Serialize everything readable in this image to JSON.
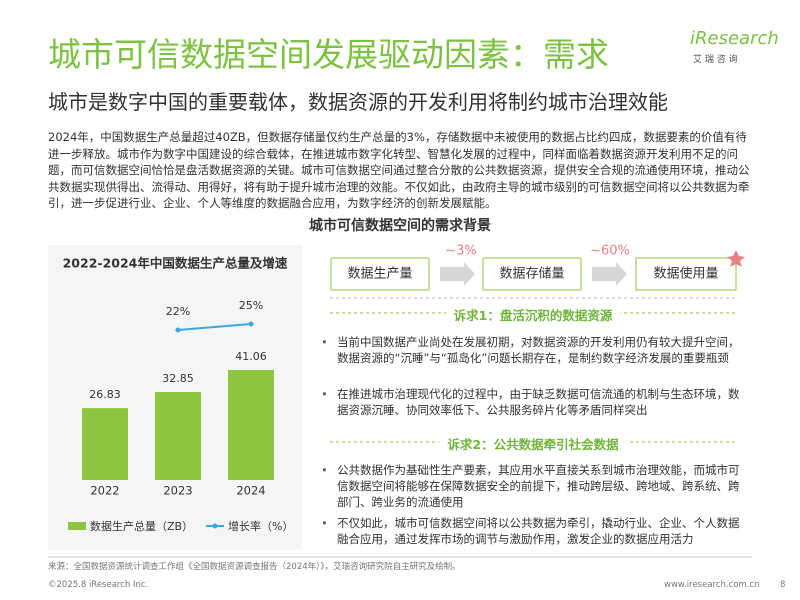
{
  "header": {
    "title": "城市可信数据空间发展驱动因素：需求",
    "subtitle": "城市是数字中国的重要载体，数据资源的开发利用将制约城市治理效能",
    "logo": "iResearch",
    "logo_sub": "艾 瑞 咨 询"
  },
  "intro": "2024年，中国数据生产总量超过40ZB，但数据存储量仅约生产总量的3%，存储数据中未被使用的数据占比约四成，数据要素的价值有待进一步释放。城市作为数字中国建设的综合载体，在推进城市数字化转型、智慧化发展的过程中，同样面临着数据资源开发利用不足的问题，而可信数据空间恰恰是盘活数据资源的关键。城市可信数据空间通过整合分散的公共数据资源，提供安全合规的流通使用环境，推动公共数据实现供得出、流得动、用得好，将有助于提升城市治理的效能。不仅如此，由政府主导的城市级别的可信数据空间将以公共数据为牵引，进一步促进行业、企业、个人等维度的数据融合应用，为数字经济的创新发展赋能。",
  "section_title": "城市可信数据空间的需求背景",
  "flow": {
    "nodes": [
      "数据生产量",
      "数据存储量",
      "数据使用量"
    ],
    "arrows": [
      "~3%",
      "~60%"
    ]
  },
  "demands": [
    {
      "title": "诉求1：盘活沉积的数据资源",
      "bullets": [
        "当前中国数据产业尚处在发展初期，对数据资源的开发利用仍有较大提升空间，数据资源的“沉睡”与“孤岛化”问题长期存在，是制约数字经济发展的重要瓶颈",
        "在推进城市治理现代化的过程中，由于缺乏数据可信流通的机制与生态环境，数据资源沉睡、协同效率低下、公共服务碎片化等矛盾同样突出"
      ]
    },
    {
      "title": "诉求2：公共数据牵引社会数据",
      "bullets": [
        "公共数据作为基础性生产要素，其应用水平直接关系到城市治理效能，而城市可信数据空间将能够在保障数据安全的前提下，推动跨层级、跨地域、跨系统、跨部门、跨业务的流通使用",
        "不仅如此，城市可信数据空间将以公共数据为牵引，撬动行业、企业、个人数据融合应用，通过发挥市场的调节与激励作用，激发企业的数据应用活力"
      ]
    }
  ],
  "chart_data": {
    "type": "bar",
    "title": "2022-2024年中国数据生产总量及增速",
    "categories": [
      "2022",
      "2023",
      "2024"
    ],
    "series": [
      {
        "name": "数据生产总量（ZB）",
        "color": "#8cc63f",
        "values": [
          26.83,
          32.85,
          41.06
        ]
      },
      {
        "name": "增长率（%）",
        "type": "line",
        "color": "#3aa8dd",
        "values": [
          null,
          22,
          25
        ],
        "value_labels": [
          null,
          "22%",
          "25%"
        ]
      }
    ],
    "legend": "bottom"
  },
  "footer": {
    "source": "来源：全国数据资源统计调查工作组《全国数据资源调查报告（2024年）》，艾瑞咨询研究院自主研究及绘制。",
    "copyright": "©2025.8 iResearch Inc.",
    "url": "www.iresearch.com.cn",
    "page": "8"
  }
}
